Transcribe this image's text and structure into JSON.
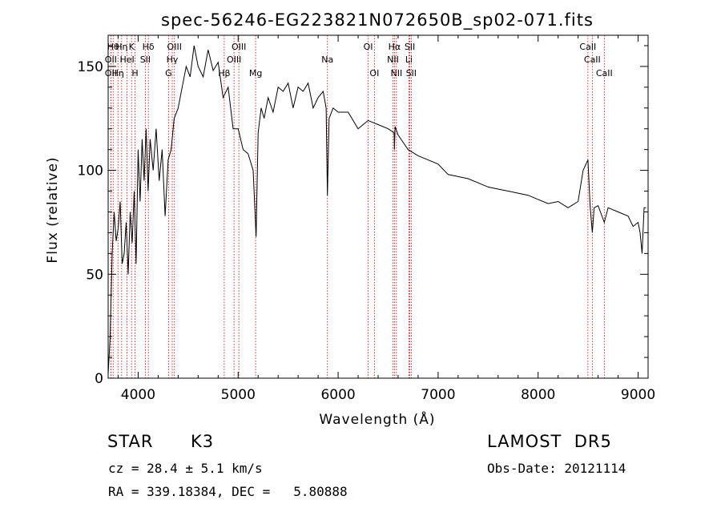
{
  "chart_data": {
    "type": "line",
    "title": "spec-56246-EG223821N072650B_sp02-071.fits",
    "xlabel": "Wavelength (Å)",
    "ylabel": "Flux (relative)",
    "xlim": [
      3700,
      9100
    ],
    "ylim": [
      0,
      165
    ],
    "x_ticks": [
      4000,
      5000,
      6000,
      7000,
      8000,
      9000
    ],
    "y_ticks": [
      0,
      50,
      100,
      150
    ],
    "line_color": "#000000",
    "marker_color": "#cc0000",
    "series": [
      {
        "x": [
          3700,
          3720,
          3740,
          3760,
          3780,
          3800,
          3820,
          3840,
          3860,
          3880,
          3900,
          3920,
          3940,
          3960,
          3980,
          4000,
          4020,
          4040,
          4060,
          4080,
          4100,
          4120,
          4150,
          4180,
          4210,
          4240,
          4270,
          4300,
          4330,
          4360,
          4400,
          4440,
          4480,
          4520,
          4560,
          4600,
          4650,
          4700,
          4750,
          4800,
          4850,
          4900,
          4950,
          5000,
          5050,
          5100,
          5150,
          5180,
          5200,
          5230,
          5260,
          5300,
          5350,
          5400,
          5450,
          5500,
          5550,
          5600,
          5650,
          5700,
          5750,
          5800,
          5850,
          5880,
          5893,
          5910,
          5950,
          6000,
          6100,
          6200,
          6300,
          6400,
          6500,
          6560,
          6563,
          6570,
          6600,
          6700,
          6800,
          6900,
          7000,
          7100,
          7200,
          7300,
          7400,
          7500,
          7600,
          7700,
          7800,
          7900,
          8000,
          8100,
          8200,
          8300,
          8400,
          8450,
          8498,
          8520,
          8542,
          8560,
          8600,
          8662,
          8700,
          8800,
          8900,
          8950,
          9000,
          9020,
          9040,
          9060,
          9080
        ],
        "y": [
          2,
          20,
          60,
          80,
          66,
          72,
          85,
          55,
          60,
          75,
          50,
          80,
          65,
          90,
          55,
          110,
          85,
          115,
          95,
          120,
          90,
          115,
          100,
          120,
          95,
          110,
          78,
          105,
          110,
          125,
          130,
          140,
          150,
          145,
          160,
          150,
          145,
          158,
          148,
          152,
          135,
          140,
          120,
          120,
          110,
          108,
          100,
          68,
          118,
          130,
          125,
          135,
          128,
          140,
          138,
          142,
          130,
          140,
          138,
          142,
          130,
          135,
          138,
          130,
          88,
          125,
          130,
          128,
          128,
          120,
          124,
          122,
          120,
          118,
          110,
          121,
          117,
          110,
          107,
          105,
          103,
          98,
          97,
          96,
          94,
          92,
          91,
          90,
          89,
          88,
          86,
          84,
          85,
          82,
          85,
          100,
          105,
          83,
          70,
          82,
          83,
          75,
          82,
          80,
          78,
          73,
          75,
          70,
          60,
          82,
          82
        ]
      }
    ],
    "line_markers": [
      {
        "x": 3750,
        "label": "Hθ",
        "row": 1
      },
      {
        "x": 3727,
        "label": "OII",
        "row": 2
      },
      {
        "x": 3727,
        "label": "OII",
        "row": 3
      },
      {
        "x": 3798,
        "label": "Hη",
        "row": 3
      },
      {
        "x": 3835,
        "label": "Hη",
        "row": 1
      },
      {
        "x": 3889,
        "label": "HeI",
        "row": 2
      },
      {
        "x": 3934,
        "label": "K",
        "row": 1
      },
      {
        "x": 3969,
        "label": "H",
        "row": 3
      },
      {
        "x": 4072,
        "label": "SII",
        "row": 2
      },
      {
        "x": 4102,
        "label": "Hδ",
        "row": 1
      },
      {
        "x": 4304,
        "label": "G",
        "row": 3
      },
      {
        "x": 4341,
        "label": "Hγ",
        "row": 2
      },
      {
        "x": 4363,
        "label": "OIII",
        "row": 1
      },
      {
        "x": 4861,
        "label": "Hβ",
        "row": 3
      },
      {
        "x": 4959,
        "label": "OIII",
        "row": 2
      },
      {
        "x": 5007,
        "label": "OIII",
        "row": 1
      },
      {
        "x": 5175,
        "label": "Mg",
        "row": 3
      },
      {
        "x": 5893,
        "label": "Na",
        "row": 2
      },
      {
        "x": 6300,
        "label": "OI",
        "row": 1
      },
      {
        "x": 6363,
        "label": "OI",
        "row": 3
      },
      {
        "x": 6548,
        "label": "NII",
        "row": 2
      },
      {
        "x": 6563,
        "label": "Hα",
        "row": 1
      },
      {
        "x": 6583,
        "label": "NII",
        "row": 3
      },
      {
        "x": 6708,
        "label": "Li",
        "row": 2
      },
      {
        "x": 6717,
        "label": "SII",
        "row": 1
      },
      {
        "x": 6731,
        "label": "SII",
        "row": 3
      },
      {
        "x": 8498,
        "label": "CaII",
        "row": 1
      },
      {
        "x": 8542,
        "label": "CaII",
        "row": 2
      },
      {
        "x": 8662,
        "label": "CaII",
        "row": 3
      }
    ]
  },
  "info": {
    "class_label": "STAR",
    "subclass": "K3",
    "survey": "LAMOST  DR5",
    "cz": "cz = 28.4 ± 5.1 km/s",
    "obs_date": "Obs-Date: 20121114",
    "coords": "RA = 339.18384, DEC =   5.80888"
  }
}
